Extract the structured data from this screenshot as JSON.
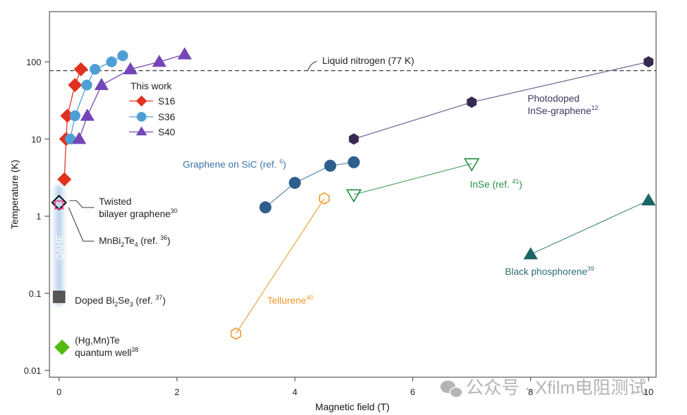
{
  "chart_data": {
    "type": "scatter",
    "title": "",
    "xlabel": "Magnetic field (T)",
    "ylabel": "Temperature (K)",
    "xscale": "linear",
    "yscale": "log",
    "xlim": [
      -0.16,
      10.1
    ],
    "ylim": [
      0.0075,
      600
    ],
    "x_ticks": [
      0,
      2,
      4,
      6,
      8,
      10
    ],
    "x_tick_labels": [
      "0",
      "2",
      "4",
      "6",
      "8",
      "10"
    ],
    "y_ticks": [
      0.01,
      0.1,
      1,
      10,
      100
    ],
    "y_tick_labels": [
      "0.01",
      "0.1",
      "1",
      "10",
      "100"
    ],
    "grid": false,
    "reference_line": {
      "y": 77,
      "style": "dashed",
      "label": "Liquid nitrogen (77 K)",
      "color": "#333333"
    },
    "band": {
      "label": "QAHE",
      "x": 0,
      "y_range": [
        0.07,
        2.5
      ],
      "color": "#a9c9e6"
    },
    "legend": {
      "title": "This work",
      "position": "upper-left-inner",
      "entries": [
        "S16",
        "S36",
        "S40"
      ]
    },
    "series": [
      {
        "name": "S16",
        "group": "This work",
        "marker": "diamond",
        "filled": true,
        "color": "#e0321e",
        "x": [
          0.09,
          0.12,
          0.14,
          0.27,
          0.37
        ],
        "y": [
          3.0,
          10,
          20,
          50,
          80
        ]
      },
      {
        "name": "S36",
        "group": "This work",
        "marker": "circle",
        "filled": true,
        "color": "#4f9fd6",
        "x": [
          0.19,
          0.27,
          0.47,
          0.61,
          0.89,
          1.08
        ],
        "y": [
          10,
          20,
          50,
          80,
          100,
          120
        ]
      },
      {
        "name": "S40",
        "group": "This work",
        "marker": "triangle-up",
        "filled": true,
        "color": "#7446b8",
        "x": [
          0.34,
          0.48,
          0.72,
          1.21,
          1.7,
          2.13
        ],
        "y": [
          10,
          20,
          50,
          80,
          100,
          125
        ]
      },
      {
        "name": "Photodoped InSe-graphene",
        "ref": "12",
        "marker": "hexagon",
        "filled": true,
        "color": "#372a52",
        "x": [
          5,
          7,
          10
        ],
        "y": [
          10,
          30,
          100
        ]
      },
      {
        "name": "Graphene on SiC",
        "ref": "6",
        "marker": "circle",
        "filled": true,
        "color": "#2e5f8c",
        "x": [
          3.5,
          4.0,
          4.6,
          5.0
        ],
        "y": [
          1.3,
          2.7,
          4.5,
          5.0
        ]
      },
      {
        "name": "InSe",
        "ref": "41",
        "marker": "triangle-down",
        "filled": false,
        "color": "#1e8a3e",
        "x": [
          5.0,
          7.0
        ],
        "y": [
          1.9,
          4.8
        ]
      },
      {
        "name": "Tellurene",
        "ref": "40",
        "marker": "hexagon",
        "filled": false,
        "color": "#f0962a",
        "x": [
          3.0,
          4.5
        ],
        "y": [
          0.03,
          1.7
        ]
      },
      {
        "name": "Black phosphorene",
        "ref": "39",
        "marker": "triangle-up",
        "filled": true,
        "color": "#1f6464",
        "x": [
          8.0,
          10.0
        ],
        "y": [
          0.32,
          1.6
        ]
      },
      {
        "name": "Twisted bilayer graphene",
        "ref": "30",
        "marker": "diamond",
        "filled": false,
        "color": "#000000",
        "x": [
          0
        ],
        "y": [
          1.5
        ]
      },
      {
        "name": "MnBi2Te4",
        "ref": "36",
        "marker": "square",
        "filled": false,
        "color": "#e0357a",
        "x": [
          0
        ],
        "y": [
          1.4
        ]
      },
      {
        "name": "Doped Bi2Se3",
        "ref": "37",
        "marker": "square",
        "filled": true,
        "color": "#555555",
        "x": [
          0
        ],
        "y": [
          0.09
        ]
      },
      {
        "name": "(Hg,Mn)Te quantum well",
        "ref": "38",
        "marker": "diamond",
        "filled": true,
        "color": "#55bb11",
        "x": [
          0.05
        ],
        "y": [
          0.02
        ]
      }
    ],
    "annotations": {
      "legend_title": "This work",
      "photodoped_line1": "Photodoped",
      "photodoped_line2": "InSe-graphene",
      "photodoped_ref": "12",
      "sic_text": "Graphene on SiC (ref. ",
      "sic_ref": "6",
      "sic_close": ")",
      "inse_text": "InSe (ref. ",
      "inse_ref": "41",
      "inse_close": ")",
      "tellurene_text": "Tellurene",
      "tellurene_ref": "40",
      "bp_text": "Black phosphorene",
      "bp_ref": "39",
      "tbg_line1": "Twisted",
      "tbg_line2": "bilayer graphene",
      "tbg_ref": "30",
      "mnbi_a": "MnBi",
      "mnbi_sub1": "2",
      "mnbi_b": "Te",
      "mnbi_sub2": "4",
      "mnbi_c": " (ref. ",
      "mnbi_ref": "36",
      "mnbi_close": ")",
      "bise_a": "Doped Bi",
      "bise_sub1": "2",
      "bise_b": "Se",
      "bise_sub2": "3",
      "bise_c": " (ref. ",
      "bise_ref": "37",
      "bise_close": ")",
      "hgmnte_line1": "(Hg,Mn)Te",
      "hgmnte_line2": "quantum well",
      "hgmnte_ref": "38",
      "qahe": "QAHE"
    }
  },
  "watermark": {
    "text": "公众号 · Xfilm电阻测试",
    "icon": "wechat-icon"
  }
}
